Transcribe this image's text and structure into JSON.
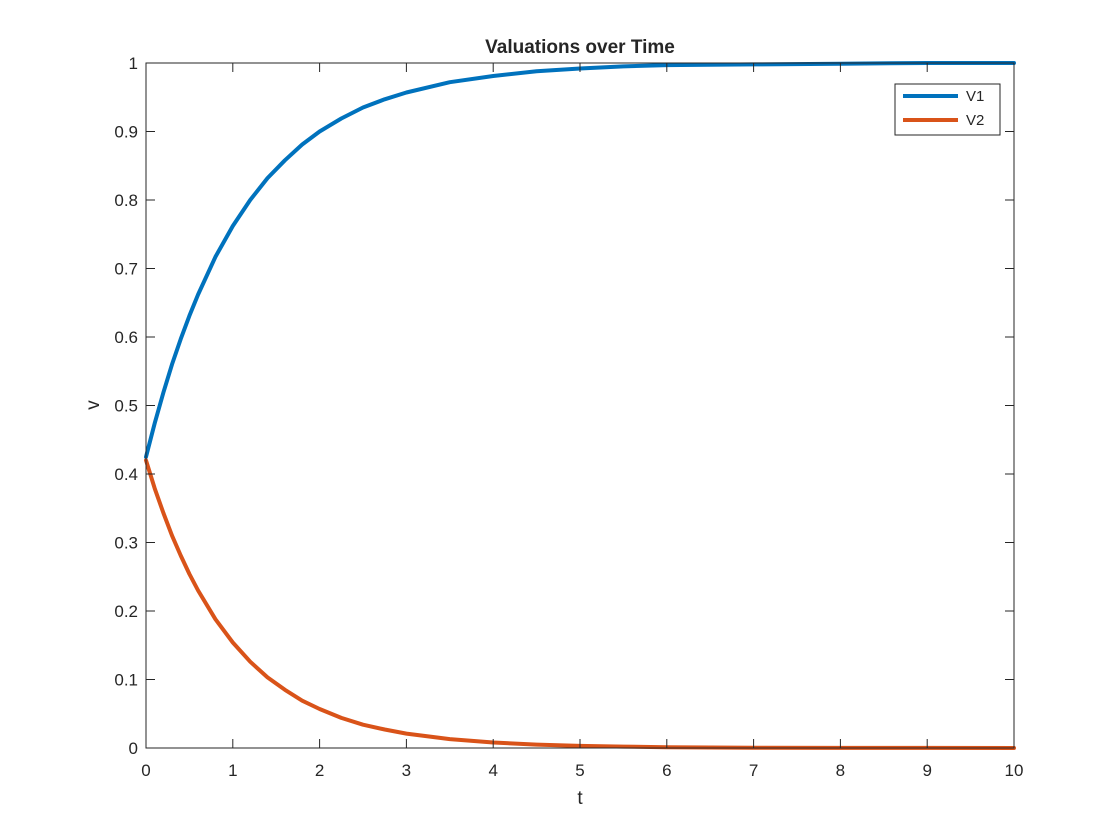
{
  "chart_data": {
    "type": "line",
    "title": "Valuations over Time",
    "xlabel": "t",
    "ylabel": "v",
    "xlim": [
      0,
      10
    ],
    "ylim": [
      0,
      1
    ],
    "xticks": [
      0,
      1,
      2,
      3,
      4,
      5,
      6,
      7,
      8,
      9,
      10
    ],
    "yticks": [
      0,
      0.1,
      0.2,
      0.3,
      0.4,
      0.5,
      0.6,
      0.7,
      0.8,
      0.9,
      1
    ],
    "grid": false,
    "legend_position": "top-right",
    "x": [
      0,
      0.1,
      0.2,
      0.3,
      0.4,
      0.5,
      0.6,
      0.8,
      1,
      1.2,
      1.4,
      1.6,
      1.8,
      2,
      2.25,
      2.5,
      2.75,
      3,
      3.5,
      4,
      4.5,
      5,
      5.5,
      6,
      7,
      8,
      9,
      10
    ],
    "series": [
      {
        "name": "V1",
        "color": "#0072BD",
        "values": [
          0.425,
          0.474,
          0.519,
          0.56,
          0.597,
          0.631,
          0.662,
          0.717,
          0.762,
          0.8,
          0.832,
          0.858,
          0.881,
          0.9,
          0.919,
          0.935,
          0.947,
          0.957,
          0.972,
          0.981,
          0.988,
          0.992,
          0.995,
          0.997,
          0.998,
          0.999,
          1.0,
          1.0
        ]
      },
      {
        "name": "V2",
        "color": "#D95319",
        "values": [
          0.42,
          0.379,
          0.343,
          0.31,
          0.281,
          0.254,
          0.23,
          0.188,
          0.154,
          0.126,
          0.103,
          0.085,
          0.069,
          0.057,
          0.044,
          0.034,
          0.027,
          0.021,
          0.013,
          0.008,
          0.005,
          0.003,
          0.002,
          0.001,
          0.0005,
          0.0002,
          0.0001,
          0.0
        ]
      }
    ]
  }
}
